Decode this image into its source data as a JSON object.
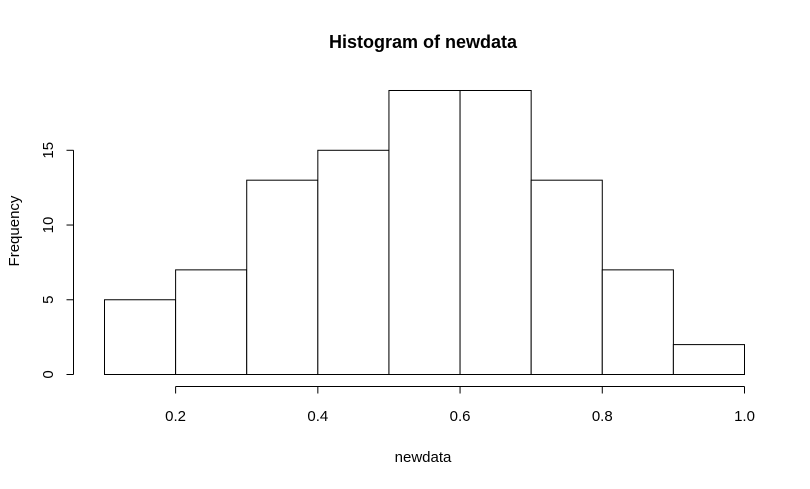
{
  "chart_data": {
    "type": "bar",
    "subtype": "histogram",
    "title": "Histogram of newdata",
    "xlabel": "newdata",
    "ylabel": "Frequency",
    "bin_edges": [
      0.1,
      0.2,
      0.3,
      0.4,
      0.5,
      0.6,
      0.7,
      0.8,
      0.9,
      1.0
    ],
    "values": [
      5,
      7,
      13,
      15,
      19,
      19,
      13,
      7,
      2
    ],
    "x_ticks": [
      0.2,
      0.4,
      0.6,
      0.8,
      1.0
    ],
    "x_tick_labels": [
      "0.2",
      "0.4",
      "0.6",
      "0.8",
      "1.0"
    ],
    "y_ticks": [
      0,
      5,
      10,
      15
    ],
    "y_tick_labels": [
      "0",
      "5",
      "10",
      "15"
    ],
    "xlim": [
      0.1,
      1.0
    ],
    "ylim": [
      0,
      19
    ],
    "grid": false,
    "bar_fill": "#ffffff",
    "bar_stroke": "#000000"
  }
}
